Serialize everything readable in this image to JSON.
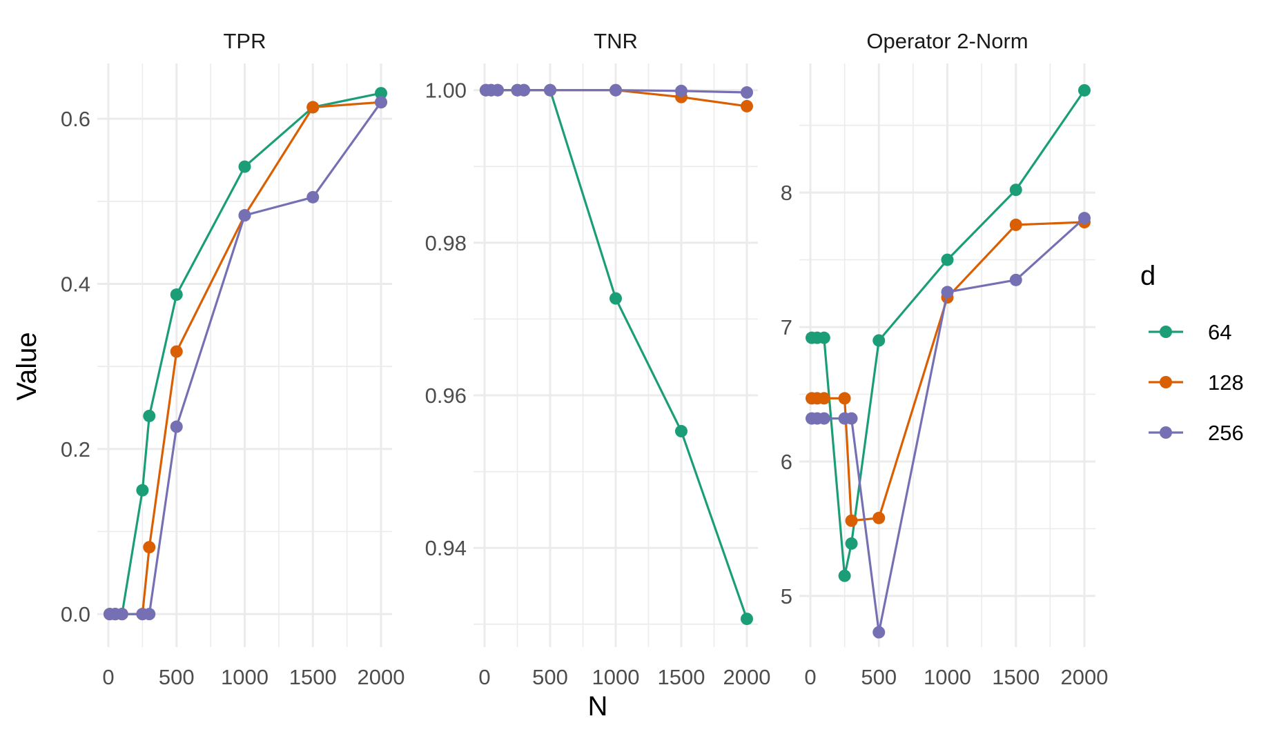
{
  "chart_data": {
    "type": "line",
    "xlabel": "N",
    "ylabel": "Value",
    "legend": {
      "title": "d",
      "position": "right"
    },
    "x": [
      10,
      50,
      100,
      250,
      300,
      500,
      1000,
      1500,
      2000
    ],
    "series_meta": [
      {
        "name": "64",
        "color": "#1B9E77"
      },
      {
        "name": "128",
        "color": "#D95F02"
      },
      {
        "name": "256",
        "color": "#7570B3"
      }
    ],
    "xlim": [
      0,
      2000
    ],
    "xticks": [
      {
        "value": 0,
        "label": "0"
      },
      {
        "value": 500,
        "label": "500"
      },
      {
        "value": 1000,
        "label": "1000"
      },
      {
        "value": 1500,
        "label": "1500"
      },
      {
        "value": 2000,
        "label": "2000"
      }
    ],
    "panels": [
      {
        "title": "TPR",
        "ylim": [
          -0.04,
          0.667
        ],
        "yticks": [
          {
            "value": 0.0,
            "label": "0.0"
          },
          {
            "value": 0.2,
            "label": "0.2"
          },
          {
            "value": 0.4,
            "label": "0.4"
          },
          {
            "value": 0.6,
            "label": "0.6"
          }
        ],
        "series": [
          {
            "name": "64",
            "values": [
              0.0,
              0.0,
              0.0,
              0.15,
              0.24,
              0.387,
              0.542,
              0.614,
              0.631
            ]
          },
          {
            "name": "128",
            "values": [
              0.0,
              0.0,
              0.0,
              0.0,
              0.081,
              0.318,
              0.483,
              0.614,
              0.62
            ]
          },
          {
            "name": "256",
            "values": [
              0.0,
              0.0,
              0.0,
              0.0,
              0.0,
              0.227,
              0.483,
              0.505,
              0.62
            ]
          }
        ]
      },
      {
        "title": "TNR",
        "ylim": [
          0.927,
          1.0035
        ],
        "yticks": [
          {
            "value": 0.94,
            "label": "0.94"
          },
          {
            "value": 0.96,
            "label": "0.96"
          },
          {
            "value": 0.98,
            "label": "0.98"
          },
          {
            "value": 1.0,
            "label": "1.00"
          }
        ],
        "series": [
          {
            "name": "64",
            "values": [
              1.0,
              1.0,
              1.0,
              1.0,
              1.0,
              1.0,
              0.9727,
              0.9553,
              0.9307
            ]
          },
          {
            "name": "128",
            "values": [
              1.0,
              1.0,
              1.0,
              1.0,
              1.0,
              1.0,
              1.0,
              0.9991,
              0.9979
            ]
          },
          {
            "name": "256",
            "values": [
              1.0,
              1.0,
              1.0,
              1.0,
              1.0,
              1.0,
              1.0,
              0.9999,
              0.9997
            ]
          }
        ]
      },
      {
        "title": "Operator 2-Norm",
        "ylim": [
          4.62,
          8.96
        ],
        "yticks": [
          {
            "value": 5,
            "label": "5"
          },
          {
            "value": 6,
            "label": "6"
          },
          {
            "value": 7,
            "label": "7"
          },
          {
            "value": 8,
            "label": "8"
          }
        ],
        "series": [
          {
            "name": "64",
            "values": [
              6.92,
              6.92,
              6.92,
              5.15,
              5.39,
              6.9,
              7.5,
              8.02,
              8.76
            ]
          },
          {
            "name": "128",
            "values": [
              6.47,
              6.47,
              6.47,
              6.47,
              5.56,
              5.58,
              7.22,
              7.76,
              7.78
            ]
          },
          {
            "name": "256",
            "values": [
              6.32,
              6.32,
              6.32,
              6.32,
              6.32,
              4.73,
              7.26,
              7.35,
              7.81
            ]
          }
        ]
      }
    ]
  }
}
